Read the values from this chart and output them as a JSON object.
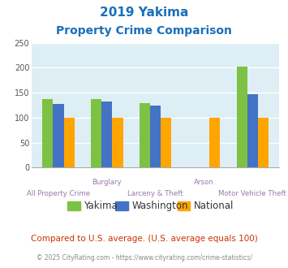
{
  "title_line1": "2019 Yakima",
  "title_line2": "Property Crime Comparison",
  "title_color": "#1a6fba",
  "group_labels_top": [
    "",
    "Burglary",
    "",
    "Arson",
    ""
  ],
  "group_labels_bottom": [
    "All Property Crime",
    "",
    "Larceny & Theft",
    "",
    "Motor Vehicle Theft"
  ],
  "series": {
    "Yakima": [
      138,
      138,
      129,
      null,
      203
    ],
    "Washington": [
      127,
      133,
      124,
      null,
      147
    ],
    "National": [
      100,
      100,
      100,
      100,
      100
    ]
  },
  "colors": {
    "Yakima": "#7dc242",
    "Washington": "#4472c4",
    "National": "#ffa500"
  },
  "ylim": [
    0,
    250
  ],
  "yticks": [
    0,
    50,
    100,
    150,
    200,
    250
  ],
  "bg_color": "#ddeef5",
  "fig_bg": "#ffffff",
  "grid_color": "#ffffff",
  "footnote1": "Compared to U.S. average. (U.S. average equals 100)",
  "footnote2": "© 2025 CityRating.com - https://www.cityrating.com/crime-statistics/",
  "footnote1_color": "#cc3300",
  "footnote2_color": "#888888",
  "bar_width": 0.22
}
